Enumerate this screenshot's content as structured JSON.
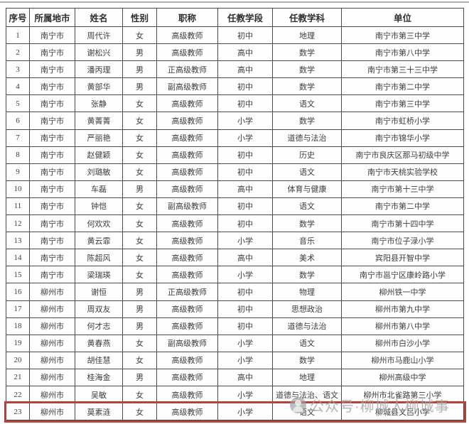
{
  "watermark": {
    "text": "公众号·柳城人柳城事",
    "icon": "official-account-icon"
  },
  "colors": {
    "table_border": "#4a4a4a",
    "highlight_red": "#b2423a",
    "watermark_gray": "#a2a2a2",
    "text": "#3b3b3b"
  },
  "table": {
    "columns": [
      "序号",
      "所属地市",
      "姓名",
      "性别",
      "职称",
      "任教学段",
      "任教学科",
      "单位"
    ],
    "highlighted_row_index": 22,
    "rows": [
      [
        "1",
        "南宁市",
        "周代许",
        "女",
        "高级教师",
        "初中",
        "地理",
        "南宁市第三中学"
      ],
      [
        "2",
        "南宁市",
        "谢松兴",
        "男",
        "高级教师",
        "高中",
        "数学",
        "南宁市第八中学"
      ],
      [
        "3",
        "南宁市",
        "潘丙理",
        "男",
        "正高级教师",
        "高中",
        "数学",
        "南宁市第三十三中学"
      ],
      [
        "4",
        "南宁市",
        "黄部华",
        "男",
        "副高级教师",
        "初中",
        "数学",
        "南宁市第二中学"
      ],
      [
        "5",
        "南宁市",
        "张静",
        "女",
        "高级教师",
        "初中",
        "语文",
        "南宁市第三中学"
      ],
      [
        "6",
        "南宁市",
        "黄菁菁",
        "女",
        "高级教师",
        "小学",
        "数学",
        "南宁市虹桥小学"
      ],
      [
        "7",
        "南宁市",
        "严丽艳",
        "女",
        "高级教师",
        "小学",
        "道德与法治",
        "南宁市锦华小学"
      ],
      [
        "8",
        "南宁市",
        "赵健颖",
        "女",
        "高级教师",
        "初中",
        "历史",
        "南宁市良庆区那马初级中学"
      ],
      [
        "9",
        "南宁市",
        "刘璐敏",
        "女",
        "高级教师",
        "初中",
        "语文",
        "南宁市天桃实验学校"
      ],
      [
        "10",
        "南宁市",
        "车磊",
        "男",
        "高级教师",
        "高中",
        "体育与健康",
        "南宁市第十三中学"
      ],
      [
        "11",
        "南宁市",
        "钟恺",
        "女",
        "副高级教师",
        "初中",
        "语文",
        "南宁市第二中学"
      ],
      [
        "12",
        "南宁市",
        "何欢欢",
        "女",
        "高级教师",
        "初中",
        "数学",
        "南宁市第十四中学"
      ],
      [
        "13",
        "南宁市",
        "黄云霏",
        "女",
        "高级教师",
        "小学",
        "音乐",
        "南宁市位子渌小学"
      ],
      [
        "14",
        "南宁市",
        "陈超风",
        "女",
        "高级教师",
        "高中",
        "美术",
        "宾阳县开智中学"
      ],
      [
        "15",
        "南宁市",
        "梁瑞瑛",
        "女",
        "高级教师",
        "小学",
        "数学",
        "南宁市邕宁区康岭路小学"
      ],
      [
        "16",
        "柳州市",
        "谢恒",
        "男",
        "正高级教师",
        "初中",
        "物理",
        "柳州铁一中学"
      ],
      [
        "17",
        "柳州市",
        "周双友",
        "男",
        "高级教师",
        "初中",
        "思想政治",
        "柳州市第九中学"
      ],
      [
        "18",
        "柳州市",
        "何才志",
        "男",
        "高级教师",
        "初中",
        "道德与法治",
        "柳州市第八中学"
      ],
      [
        "19",
        "柳州市",
        "黄春燕",
        "女",
        "副高级教师",
        "小学",
        "语文",
        "柳州市白沙小学"
      ],
      [
        "20",
        "柳州市",
        "胡佳慧",
        "女",
        "高级教师",
        "小学",
        "数学",
        "柳州市马鹿山小学"
      ],
      [
        "21",
        "柳州市",
        "桂海金",
        "男",
        "高级教师",
        "高中",
        "地理",
        "柳州高级中学"
      ],
      [
        "22",
        "柳州市",
        "吴敏",
        "女",
        "高级教师",
        "小学",
        "道德与法治、语文",
        "柳州市北雀路第三小学"
      ],
      [
        "23",
        "柳州市",
        "莫素涟",
        "女",
        "高级教师",
        "小学",
        "语文",
        "柳城县文吕小学"
      ]
    ]
  }
}
